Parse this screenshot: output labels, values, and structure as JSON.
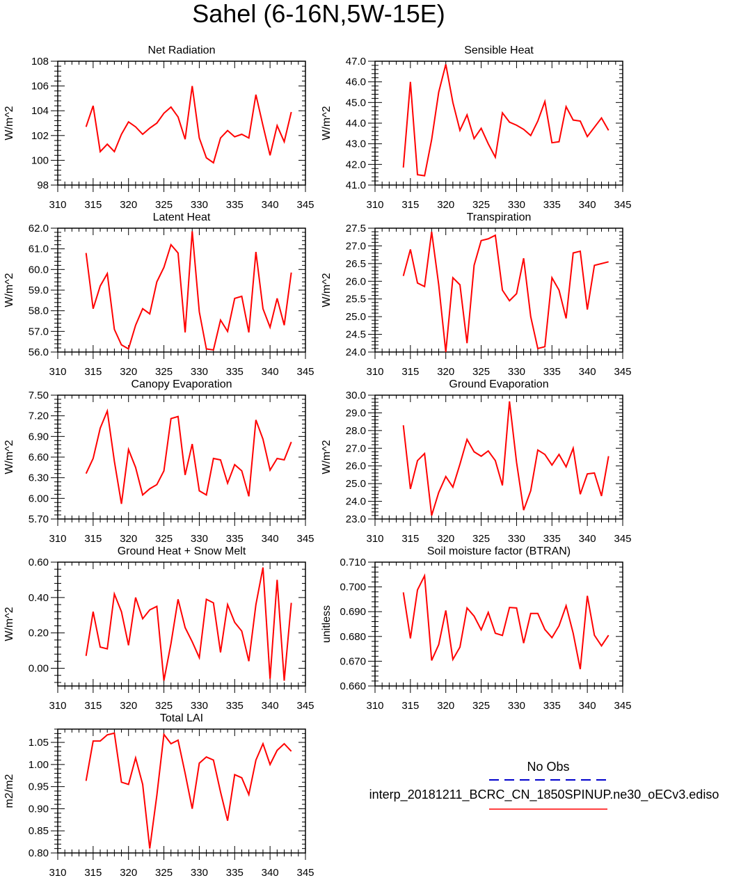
{
  "title": "Sahel (6-16N,5W-15E)",
  "legend": [
    {
      "label": "No Obs",
      "color": "#0000cc",
      "dash": true
    },
    {
      "label": "interp_20181211_BCRC_CN_1850SPINUP.ne30_oECv3.ediso",
      "color": "#ff0000",
      "dash": false
    }
  ],
  "chart_data": [
    {
      "type": "line",
      "title": "Net Radiation",
      "ylabel": "W/m^2",
      "xlim": [
        310,
        345
      ],
      "ylim": [
        98,
        108
      ],
      "xticks": [
        "310",
        "315",
        "320",
        "325",
        "330",
        "335",
        "340",
        "345"
      ],
      "yticks": [
        "98",
        "100",
        "102",
        "104",
        "106",
        "108"
      ],
      "series": [
        {
          "color": "#ff0000",
          "x": [
            314,
            315,
            316,
            317,
            318,
            319,
            320,
            321,
            322,
            323,
            324,
            325,
            326,
            327,
            328,
            329,
            330,
            331,
            332,
            333,
            334,
            335,
            336,
            337,
            338,
            339,
            340,
            341,
            342,
            343
          ],
          "values": [
            102.7,
            104.4,
            100.7,
            101.3,
            100.7,
            102.1,
            103.1,
            102.7,
            102.1,
            102.6,
            103.0,
            103.8,
            104.3,
            103.5,
            101.7,
            106.0,
            101.8,
            100.2,
            99.8,
            101.8,
            102.4,
            101.9,
            102.1,
            101.8,
            105.3,
            102.8,
            100.4,
            102.8,
            101.5,
            103.9
          ]
        }
      ]
    },
    {
      "type": "line",
      "title": "Sensible Heat",
      "ylabel": "W/m^2",
      "xlim": [
        310,
        345
      ],
      "ylim": [
        41,
        47
      ],
      "xticks": [
        "310",
        "315",
        "320",
        "325",
        "330",
        "335",
        "340",
        "345"
      ],
      "yticks": [
        "41.0",
        "42.0",
        "43.0",
        "44.0",
        "45.0",
        "46.0",
        "47.0"
      ],
      "series": [
        {
          "color": "#ff0000",
          "x": [
            314,
            315,
            316,
            317,
            318,
            319,
            320,
            321,
            322,
            323,
            324,
            325,
            326,
            327,
            328,
            329,
            330,
            331,
            332,
            333,
            334,
            335,
            336,
            337,
            338,
            339,
            340,
            341,
            342,
            343
          ],
          "values": [
            41.85,
            46.0,
            41.5,
            41.45,
            43.2,
            45.5,
            46.85,
            45.0,
            43.65,
            44.4,
            43.25,
            43.75,
            43.0,
            42.35,
            44.5,
            44.05,
            43.9,
            43.7,
            43.4,
            44.1,
            45.05,
            43.05,
            43.1,
            44.8,
            44.15,
            44.1,
            43.35,
            43.8,
            44.25,
            43.65
          ]
        }
      ]
    },
    {
      "type": "line",
      "title": "Latent Heat",
      "ylabel": "W/m^2",
      "xlim": [
        310,
        345
      ],
      "ylim": [
        56,
        62
      ],
      "xticks": [
        "310",
        "315",
        "320",
        "325",
        "330",
        "335",
        "340",
        "345"
      ],
      "yticks": [
        "56.0",
        "57.0",
        "58.0",
        "59.0",
        "60.0",
        "61.0",
        "62.0"
      ],
      "series": [
        {
          "color": "#ff0000",
          "x": [
            314,
            315,
            316,
            317,
            318,
            319,
            320,
            321,
            322,
            323,
            324,
            325,
            326,
            327,
            328,
            329,
            330,
            331,
            332,
            333,
            334,
            335,
            336,
            337,
            338,
            339,
            340,
            341,
            342,
            343
          ],
          "values": [
            60.8,
            58.1,
            59.2,
            59.8,
            57.1,
            56.35,
            56.15,
            57.3,
            58.1,
            57.85,
            59.4,
            60.1,
            61.2,
            60.8,
            56.95,
            61.85,
            57.95,
            56.15,
            56.1,
            57.55,
            57.0,
            58.6,
            58.7,
            56.95,
            60.85,
            58.1,
            57.2,
            58.6,
            57.3,
            59.85
          ]
        }
      ]
    },
    {
      "type": "line",
      "title": "Transpiration",
      "ylabel": "W/m^2",
      "xlim": [
        310,
        345
      ],
      "ylim": [
        24,
        27.5
      ],
      "xticks": [
        "310",
        "315",
        "320",
        "325",
        "330",
        "335",
        "340",
        "345"
      ],
      "yticks": [
        "24.0",
        "24.5",
        "25.0",
        "25.5",
        "26.0",
        "26.5",
        "27.0",
        "27.5"
      ],
      "series": [
        {
          "color": "#ff0000",
          "x": [
            314,
            315,
            316,
            317,
            318,
            319,
            320,
            321,
            322,
            323,
            324,
            325,
            326,
            327,
            328,
            329,
            330,
            331,
            332,
            333,
            334,
            335,
            336,
            337,
            338,
            339,
            340,
            341,
            342,
            343
          ],
          "values": [
            26.15,
            26.9,
            25.95,
            25.85,
            27.4,
            25.9,
            24.0,
            26.1,
            25.9,
            24.25,
            26.45,
            27.15,
            27.2,
            27.3,
            25.75,
            25.45,
            25.65,
            26.65,
            25.0,
            24.1,
            24.15,
            26.1,
            25.75,
            24.95,
            26.8,
            26.85,
            25.2,
            26.45,
            26.5,
            26.55
          ]
        }
      ]
    },
    {
      "type": "line",
      "title": "Canopy Evaporation",
      "ylabel": "W/m^2",
      "xlim": [
        310,
        345
      ],
      "ylim": [
        5.7,
        7.5
      ],
      "xticks": [
        "310",
        "315",
        "320",
        "325",
        "330",
        "335",
        "340",
        "345"
      ],
      "yticks": [
        "5.70",
        "6.00",
        "6.30",
        "6.60",
        "6.90",
        "7.20",
        "7.50"
      ],
      "series": [
        {
          "color": "#ff0000",
          "x": [
            314,
            315,
            316,
            317,
            318,
            319,
            320,
            321,
            322,
            323,
            324,
            325,
            326,
            327,
            328,
            329,
            330,
            331,
            332,
            333,
            334,
            335,
            336,
            337,
            338,
            339,
            340,
            341,
            342,
            343
          ],
          "values": [
            6.36,
            6.58,
            7.02,
            7.27,
            6.54,
            5.92,
            6.71,
            6.45,
            6.05,
            6.14,
            6.2,
            6.4,
            7.16,
            7.19,
            6.34,
            6.79,
            6.11,
            6.05,
            6.58,
            6.56,
            6.22,
            6.49,
            6.4,
            6.03,
            7.14,
            6.86,
            6.41,
            6.58,
            6.56,
            6.82
          ]
        }
      ]
    },
    {
      "type": "line",
      "title": "Ground Evaporation",
      "ylabel": "W/m^2",
      "xlim": [
        310,
        345
      ],
      "ylim": [
        23,
        30
      ],
      "xticks": [
        "310",
        "315",
        "320",
        "325",
        "330",
        "335",
        "340",
        "345"
      ],
      "yticks": [
        "23.0",
        "24.0",
        "25.0",
        "26.0",
        "27.0",
        "28.0",
        "29.0",
        "30.0"
      ],
      "series": [
        {
          "color": "#ff0000",
          "x": [
            314,
            315,
            316,
            317,
            318,
            319,
            320,
            321,
            322,
            323,
            324,
            325,
            326,
            327,
            328,
            329,
            330,
            331,
            332,
            333,
            334,
            335,
            336,
            337,
            338,
            339,
            340,
            341,
            342,
            343
          ],
          "values": [
            28.3,
            24.7,
            26.3,
            26.7,
            23.2,
            24.5,
            25.4,
            24.8,
            26.1,
            27.5,
            26.8,
            26.55,
            26.85,
            26.3,
            24.9,
            29.65,
            26.2,
            23.5,
            24.6,
            26.9,
            26.65,
            26.05,
            26.65,
            25.95,
            27.0,
            24.4,
            25.55,
            25.6,
            24.3,
            26.55
          ]
        }
      ]
    },
    {
      "type": "line",
      "title": "Ground Heat + Snow Melt",
      "ylabel": "W/m^2",
      "xlim": [
        310,
        345
      ],
      "ylim": [
        -0.1,
        0.6
      ],
      "xticks": [
        "310",
        "315",
        "320",
        "325",
        "330",
        "335",
        "340",
        "345"
      ],
      "yticks": [
        "0.00",
        "0.20",
        "0.40",
        "0.60"
      ],
      "ytick_values": [
        0,
        0.2,
        0.4,
        0.6
      ],
      "series": [
        {
          "color": "#ff0000",
          "x": [
            314,
            315,
            316,
            317,
            318,
            319,
            320,
            321,
            322,
            323,
            324,
            325,
            326,
            327,
            328,
            329,
            330,
            331,
            332,
            333,
            334,
            335,
            336,
            337,
            338,
            339,
            340,
            341,
            342,
            343
          ],
          "values": [
            0.07,
            0.32,
            0.12,
            0.11,
            0.42,
            0.32,
            0.13,
            0.4,
            0.28,
            0.33,
            0.35,
            -0.07,
            0.14,
            0.39,
            0.23,
            0.15,
            0.06,
            0.39,
            0.37,
            0.09,
            0.36,
            0.26,
            0.21,
            0.04,
            0.36,
            0.57,
            -0.06,
            0.5,
            -0.07,
            0.37
          ]
        }
      ]
    },
    {
      "type": "line",
      "title": "Soil moisture factor (BTRAN)",
      "ylabel": "unitless",
      "xlim": [
        310,
        345
      ],
      "ylim": [
        0.66,
        0.71
      ],
      "xticks": [
        "310",
        "315",
        "320",
        "325",
        "330",
        "335",
        "340",
        "345"
      ],
      "yticks": [
        "0.660",
        "0.670",
        "0.680",
        "0.690",
        "0.700",
        "0.710"
      ],
      "series": [
        {
          "color": "#ff0000",
          "x": [
            314,
            315,
            316,
            317,
            318,
            319,
            320,
            321,
            322,
            323,
            324,
            325,
            326,
            327,
            328,
            329,
            330,
            331,
            332,
            333,
            334,
            335,
            336,
            337,
            338,
            339,
            340,
            341,
            342,
            343
          ],
          "values": [
            0.6978,
            0.6792,
            0.6988,
            0.7045,
            0.6703,
            0.6767,
            0.6905,
            0.6707,
            0.6757,
            0.6915,
            0.6882,
            0.6827,
            0.6897,
            0.6813,
            0.6804,
            0.6917,
            0.6915,
            0.6773,
            0.6893,
            0.6893,
            0.6828,
            0.6795,
            0.6843,
            0.6924,
            0.6813,
            0.6668,
            0.6964,
            0.6805,
            0.6762,
            0.6805
          ]
        }
      ]
    },
    {
      "type": "line",
      "title": "Total LAI",
      "ylabel": "m2/m2",
      "xlim": [
        310,
        345
      ],
      "ylim": [
        0.8,
        1.08
      ],
      "xticks": [
        "310",
        "315",
        "320",
        "325",
        "330",
        "335",
        "340",
        "345"
      ],
      "yticks": [
        "0.80",
        "0.85",
        "0.90",
        "0.95",
        "1.00",
        "1.05"
      ],
      "ytick_values": [
        0.8,
        0.85,
        0.9,
        0.95,
        1.0,
        1.05
      ],
      "series": [
        {
          "color": "#ff0000",
          "x": [
            314,
            315,
            316,
            317,
            318,
            319,
            320,
            321,
            322,
            323,
            324,
            325,
            326,
            327,
            328,
            329,
            330,
            331,
            332,
            333,
            334,
            335,
            336,
            337,
            338,
            339,
            340,
            341,
            342,
            343
          ],
          "values": [
            0.963,
            1.053,
            1.053,
            1.067,
            1.071,
            0.96,
            0.955,
            1.015,
            0.955,
            0.81,
            0.93,
            1.068,
            1.047,
            1.055,
            0.98,
            0.9,
            1.003,
            1.017,
            1.01,
            0.938,
            0.873,
            0.977,
            0.97,
            0.932,
            1.01,
            1.047,
            1.0,
            1.032,
            1.047,
            1.03
          ]
        }
      ]
    }
  ]
}
